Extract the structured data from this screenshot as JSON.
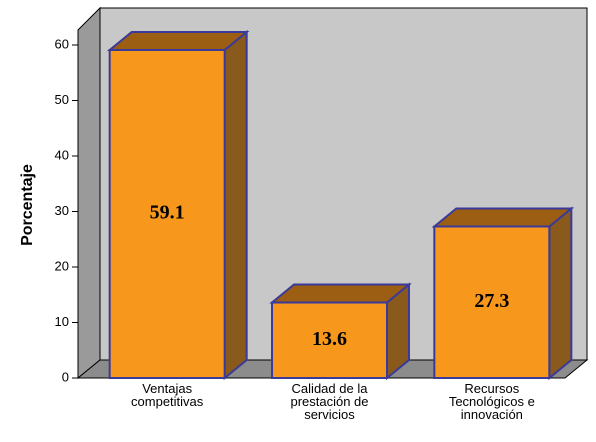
{
  "chart_data": {
    "type": "bar3d",
    "y_label": "Porcentaje",
    "categories": [
      "Ventajas\ncompetitivas",
      "Calidad de la\nprestación de\nservicios",
      "Recursos\nTecnológicos e\ninnovación"
    ],
    "values": [
      59.1,
      13.6,
      27.3
    ],
    "value_labels": [
      "59.1",
      "13.6",
      "27.3"
    ],
    "color": "#f7981d",
    "ylim": [
      0,
      60
    ],
    "yticks": [
      0,
      10,
      20,
      30,
      40,
      50,
      60
    ]
  }
}
